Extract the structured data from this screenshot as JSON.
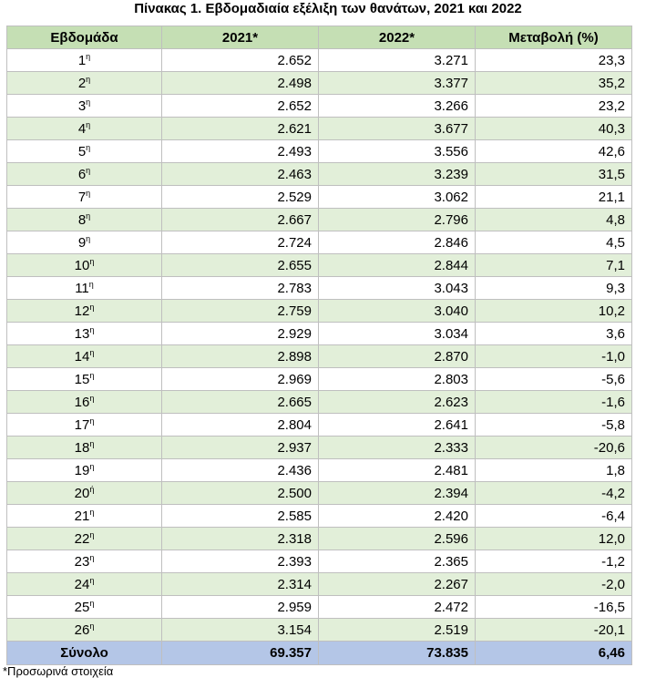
{
  "title": "Πίνακας 1. Εβδομαδιαία εξέλιξη των θανάτων, 2021 και 2022",
  "table": {
    "headers": [
      "Εβδομάδα",
      "2021*",
      "2022*",
      "Μεταβολή (%)"
    ],
    "rows": [
      {
        "week": "1",
        "sup": "η",
        "y2021": "2.652",
        "y2022": "3.271",
        "change": "23,3"
      },
      {
        "week": "2",
        "sup": "η",
        "y2021": "2.498",
        "y2022": "3.377",
        "change": "35,2"
      },
      {
        "week": "3",
        "sup": "η",
        "y2021": "2.652",
        "y2022": "3.266",
        "change": "23,2"
      },
      {
        "week": "4",
        "sup": "η",
        "y2021": "2.621",
        "y2022": "3.677",
        "change": "40,3"
      },
      {
        "week": "5",
        "sup": "η",
        "y2021": "2.493",
        "y2022": "3.556",
        "change": "42,6"
      },
      {
        "week": "6",
        "sup": "η",
        "y2021": "2.463",
        "y2022": "3.239",
        "change": "31,5"
      },
      {
        "week": "7",
        "sup": "η",
        "y2021": "2.529",
        "y2022": "3.062",
        "change": "21,1"
      },
      {
        "week": "8",
        "sup": "η",
        "y2021": "2.667",
        "y2022": "2.796",
        "change": "4,8"
      },
      {
        "week": "9",
        "sup": "η",
        "y2021": "2.724",
        "y2022": "2.846",
        "change": "4,5"
      },
      {
        "week": "10",
        "sup": "η",
        "y2021": "2.655",
        "y2022": "2.844",
        "change": "7,1"
      },
      {
        "week": "11",
        "sup": "η",
        "y2021": "2.783",
        "y2022": "3.043",
        "change": "9,3"
      },
      {
        "week": "12",
        "sup": "η",
        "y2021": "2.759",
        "y2022": "3.040",
        "change": "10,2"
      },
      {
        "week": "13",
        "sup": "η",
        "y2021": "2.929",
        "y2022": "3.034",
        "change": "3,6"
      },
      {
        "week": "14",
        "sup": "η",
        "y2021": "2.898",
        "y2022": "2.870",
        "change": "-1,0"
      },
      {
        "week": "15",
        "sup": "η",
        "y2021": "2.969",
        "y2022": "2.803",
        "change": "-5,6"
      },
      {
        "week": "16",
        "sup": "η",
        "y2021": "2.665",
        "y2022": "2.623",
        "change": "-1,6"
      },
      {
        "week": "17",
        "sup": "η",
        "y2021": "2.804",
        "y2022": "2.641",
        "change": "-5,8"
      },
      {
        "week": "18",
        "sup": "η",
        "y2021": "2.937",
        "y2022": "2.333",
        "change": "-20,6"
      },
      {
        "week": "19",
        "sup": "η",
        "y2021": "2.436",
        "y2022": "2.481",
        "change": "1,8"
      },
      {
        "week": "20",
        "sup": "ή",
        "y2021": "2.500",
        "y2022": "2.394",
        "change": "-4,2"
      },
      {
        "week": "21",
        "sup": "η",
        "y2021": "2.585",
        "y2022": "2.420",
        "change": "-6,4"
      },
      {
        "week": "22",
        "sup": "η",
        "y2021": "2.318",
        "y2022": "2.596",
        "change": "12,0"
      },
      {
        "week": "23",
        "sup": "η",
        "y2021": "2.393",
        "y2022": "2.365",
        "change": "-1,2"
      },
      {
        "week": "24",
        "sup": "η",
        "y2021": "2.314",
        "y2022": "2.267",
        "change": "-2,0"
      },
      {
        "week": "25",
        "sup": "η",
        "y2021": "2.959",
        "y2022": "2.472",
        "change": "-16,5"
      },
      {
        "week": "26",
        "sup": "η",
        "y2021": "3.154",
        "y2022": "2.519",
        "change": "-20,1"
      }
    ],
    "total": {
      "label": "Σύνολο",
      "y2021": "69.357",
      "y2022": "73.835",
      "change": "6,46"
    }
  },
  "footnote": "*Προσωρινά στοιχεία",
  "colors": {
    "header_bg": "#c5dfb4",
    "stripe_bg": "#e2efd9",
    "total_bg": "#b4c6e7",
    "border": "#bfbfbf"
  }
}
